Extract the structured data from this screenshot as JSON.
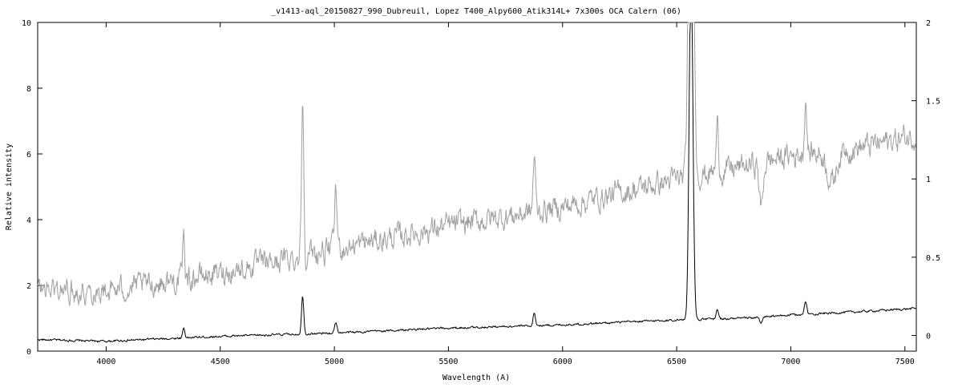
{
  "chart_data": {
    "type": "line",
    "title": "_v1413-aql_20150827_990_Dubreuil, Lopez  T400_Alpy600_Atik314L+  7x300s  OCA Calern (06)",
    "xlabel": "Wavelength (A)",
    "ylabel": "Relative intensity",
    "xlim": [
      3700,
      7550
    ],
    "ylim": [
      0,
      10
    ],
    "y2lim": [
      -0.1,
      2
    ],
    "x_ticks": [
      4000,
      4500,
      5000,
      5500,
      6000,
      6500,
      7000,
      7500
    ],
    "y_ticks": [
      0,
      2,
      4,
      6,
      8,
      10
    ],
    "y2_ticks": [
      0,
      0.5,
      1,
      1.5,
      2
    ],
    "grid": false,
    "noise": {
      "black": 0.05,
      "gray": 0.12
    },
    "series": [
      {
        "color": "#000000",
        "axis": "left",
        "continuum": [
          [
            3700,
            0.35
          ],
          [
            4000,
            0.3
          ],
          [
            4500,
            0.45
          ],
          [
            5000,
            0.55
          ],
          [
            5500,
            0.7
          ],
          [
            6000,
            0.8
          ],
          [
            6500,
            0.95
          ],
          [
            6800,
            1.0
          ],
          [
            7000,
            1.1
          ],
          [
            7300,
            1.2
          ],
          [
            7550,
            1.3
          ]
        ],
        "features": [
          {
            "x": 4340,
            "a": 0.3,
            "w": 5
          },
          {
            "x": 4861,
            "a": 1.15,
            "w": 5
          },
          {
            "x": 5006,
            "a": 0.3,
            "w": 6
          },
          {
            "x": 5876,
            "a": 0.4,
            "w": 5
          },
          {
            "x": 6563,
            "a": 11,
            "w": 8
          },
          {
            "x": 6678,
            "a": 0.3,
            "w": 5
          },
          {
            "x": 6870,
            "a": -0.2,
            "w": 6
          },
          {
            "x": 7065,
            "a": 0.4,
            "w": 5
          }
        ]
      },
      {
        "color": "#a0a0a0",
        "axis": "right",
        "continuum": [
          [
            3700,
            0.3
          ],
          [
            4000,
            0.28
          ],
          [
            4500,
            0.4
          ],
          [
            5000,
            0.55
          ],
          [
            5500,
            0.7
          ],
          [
            6000,
            0.82
          ],
          [
            6500,
            1.0
          ],
          [
            6800,
            1.08
          ],
          [
            7000,
            1.15
          ],
          [
            7300,
            1.2
          ],
          [
            7550,
            1.28
          ]
        ],
        "features": [
          {
            "x": 4340,
            "a": 0.25,
            "w": 5
          },
          {
            "x": 4861,
            "a": 1.0,
            "w": 5
          },
          {
            "x": 5006,
            "a": 0.35,
            "w": 6
          },
          {
            "x": 5876,
            "a": 0.35,
            "w": 5
          },
          {
            "x": 6563,
            "a": 3.0,
            "w": 10
          },
          {
            "x": 6678,
            "a": 0.3,
            "w": 5
          },
          {
            "x": 6870,
            "a": -0.3,
            "w": 8
          },
          {
            "x": 7065,
            "a": 0.35,
            "w": 5
          },
          {
            "x": 7180,
            "a": -0.2,
            "w": 20
          }
        ]
      }
    ]
  }
}
